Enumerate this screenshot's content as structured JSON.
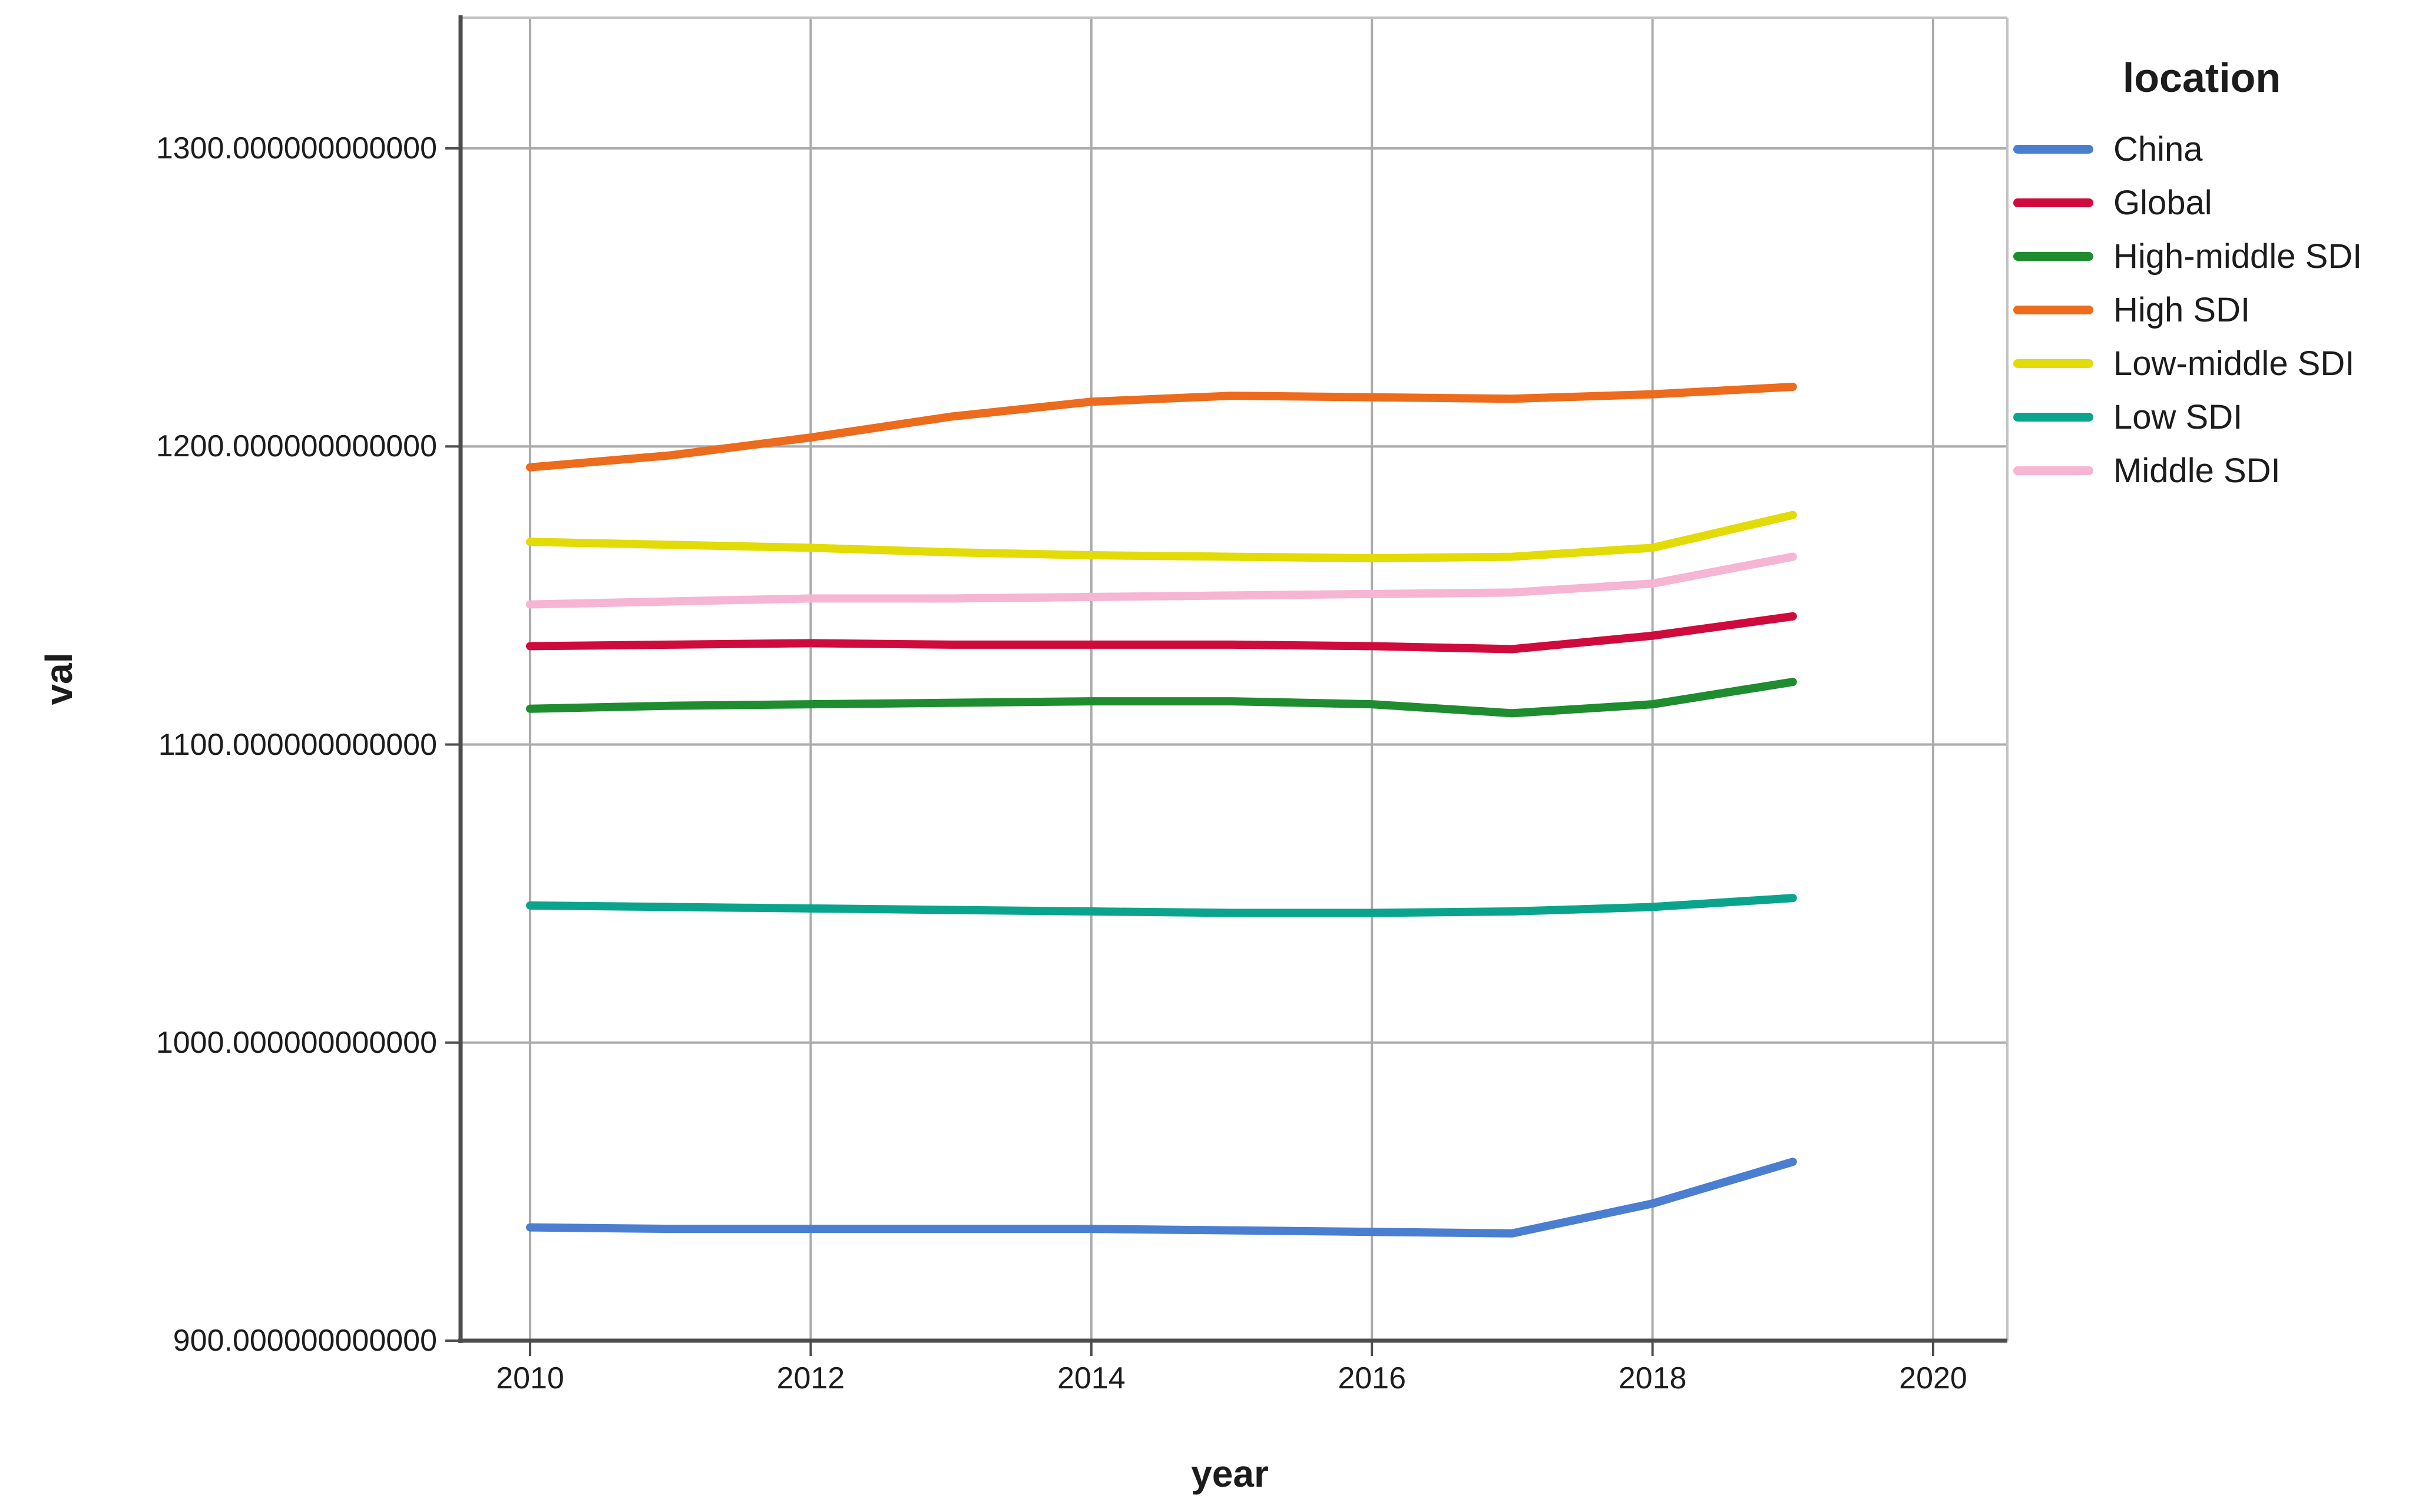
{
  "y_axis": {
    "title": "val",
    "ticks": [
      {
        "value": 1300,
        "label": "1300.000000000000"
      },
      {
        "value": 1200,
        "label": "1200.000000000000"
      },
      {
        "value": 1100,
        "label": "1100.000000000000"
      },
      {
        "value": 1000,
        "label": "1000.000000000000"
      },
      {
        "value": 900,
        "label": "900.000000000000"
      }
    ]
  },
  "x_axis": {
    "title": "year",
    "ticks": [
      {
        "value": 2010,
        "label": "2010"
      },
      {
        "value": 2012,
        "label": "2012"
      },
      {
        "value": 2014,
        "label": "2014"
      },
      {
        "value": 2016,
        "label": "2016"
      },
      {
        "value": 2018,
        "label": "2018"
      },
      {
        "value": 2020,
        "label": "2020"
      }
    ]
  },
  "legend": {
    "title": "location",
    "items": [
      {
        "label": "China",
        "color": "#4A7ED0"
      },
      {
        "label": "Global",
        "color": "#CF0A3C"
      },
      {
        "label": "High-middle SDI",
        "color": "#1E8C2F"
      },
      {
        "label": "High SDI",
        "color": "#EC6B1C"
      },
      {
        "label": "Low-middle SDI",
        "color": "#E2DB06"
      },
      {
        "label": "Low SDI",
        "color": "#0AA48D"
      },
      {
        "label": "Middle SDI",
        "color": "#F5B5D3"
      }
    ]
  },
  "colors": {
    "background": "#ffffff",
    "grid": "#ababab",
    "axis_dark": "#4d4d4d",
    "frame_light": "#c2c2c2",
    "text": "#1c1c1c"
  },
  "chart_data": {
    "type": "line",
    "title": "",
    "xlabel": "year",
    "ylabel": "val",
    "x": [
      2010,
      2011,
      2012,
      2013,
      2014,
      2015,
      2016,
      2017,
      2018,
      2019
    ],
    "xlim": [
      2009.5,
      2020.9
    ],
    "ylim": [
      900,
      1344
    ],
    "grid": true,
    "legend_position": "top-right",
    "series": [
      {
        "name": "China",
        "color": "#4A7ED0",
        "values": [
          938,
          937.5,
          937.5,
          937.5,
          937.5,
          937,
          936.5,
          936,
          946,
          960
        ]
      },
      {
        "name": "Global",
        "color": "#CF0A3C",
        "values": [
          1133,
          1133.5,
          1134,
          1133.5,
          1133.5,
          1133.5,
          1133,
          1132,
          1136.5,
          1143
        ]
      },
      {
        "name": "High-middle SDI",
        "color": "#1E8C2F",
        "values": [
          1112,
          1113,
          1113.5,
          1114,
          1114.5,
          1114.5,
          1113.5,
          1110.5,
          1113.5,
          1121
        ]
      },
      {
        "name": "High SDI",
        "color": "#EC6B1C",
        "values": [
          1193,
          1197,
          1203,
          1210,
          1215,
          1217,
          1216.5,
          1216,
          1217.5,
          1220
        ]
      },
      {
        "name": "Low-middle SDI",
        "color": "#E2DB06",
        "values": [
          1168,
          1167,
          1166,
          1164.5,
          1163.5,
          1163,
          1162.5,
          1163,
          1166,
          1177
        ]
      },
      {
        "name": "Low SDI",
        "color": "#0AA48D",
        "values": [
          1046,
          1045.5,
          1045,
          1044.5,
          1044,
          1043.5,
          1043.5,
          1044,
          1045.5,
          1048.5
        ]
      },
      {
        "name": "Middle SDI",
        "color": "#F5B5D3",
        "values": [
          1147,
          1148,
          1149,
          1149,
          1149.5,
          1150,
          1150.5,
          1151,
          1154,
          1163
        ]
      }
    ]
  }
}
